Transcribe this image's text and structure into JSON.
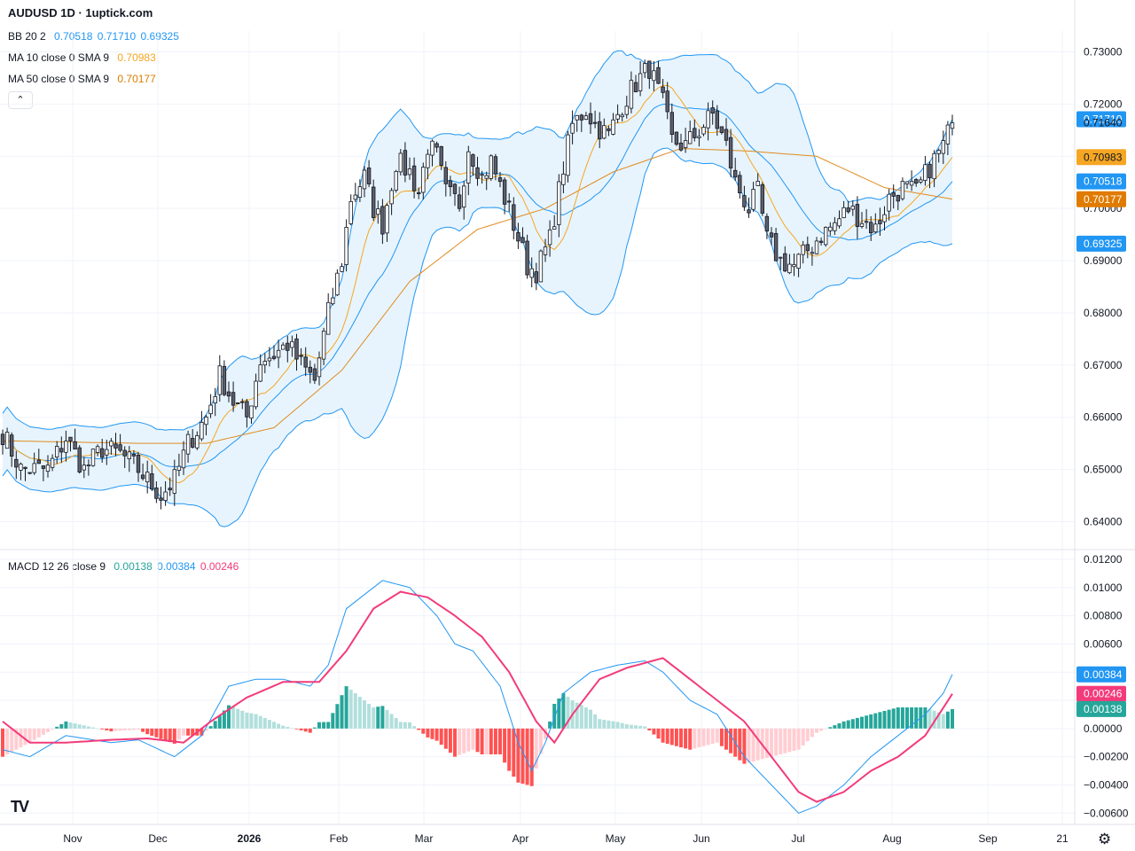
{
  "header": {
    "title": "AUDUSD 1D · 1uptick.com"
  },
  "legend": {
    "bb": {
      "label": "BB 20 2",
      "values": [
        "0.70518",
        "0.71710",
        "0.69325"
      ]
    },
    "ma10": {
      "label": "MA 10 close 0 SMA 9",
      "value": "0.70983"
    },
    "ma50": {
      "label": "MA 50 close 0 SMA 9",
      "value": "0.70177"
    },
    "macd": {
      "label": "MACD 12 26 close 9",
      "values": [
        "0.00138",
        "0.00384",
        "0.00246"
      ]
    }
  },
  "collapse_icon": "chevron-up-icon",
  "colors": {
    "bb": "#2196f3",
    "bb_fill": "#e3f2fd",
    "ma10": "#f5a623",
    "ma50": "#e08a1e",
    "macd_line": "#2196f3",
    "signal_line": "#f23b7a",
    "hist_pos": "#26a69a",
    "hist_pos_light": "#b2dfdb",
    "hist_neg": "#ff5252",
    "hist_neg_light": "#ffcdd2"
  },
  "chart_data": [
    {
      "type": "candlestick",
      "title": "AUDUSD 1D",
      "ylim": [
        0.636,
        0.734
      ],
      "yticks": [
        "0.73000",
        "0.72000",
        "0.71000",
        "0.70000",
        "0.69000",
        "0.68000",
        "0.67000",
        "0.66000",
        "0.65000",
        "0.64000"
      ],
      "xticks": [
        "Nov",
        "Dec",
        "2026",
        "Feb",
        "Mar",
        "Apr",
        "May",
        "Jun",
        "Jul",
        "Aug",
        "Sep",
        "21"
      ],
      "price_labels": [
        {
          "text": "0.71710",
          "value": 0.7171,
          "style": "bb"
        },
        {
          "text": "0.71640",
          "value": 0.7164,
          "style": "plain"
        },
        {
          "text": "0.70983",
          "value": 0.70983,
          "style": "ma10"
        },
        {
          "text": "0.70518",
          "value": 0.70518,
          "style": "bb"
        },
        {
          "text": "0.70177",
          "value": 0.70177,
          "style": "ma50"
        },
        {
          "text": "0.69325",
          "value": 0.69325,
          "style": "bb"
        }
      ],
      "close_keypoints": [
        [
          0,
          0.657
        ],
        [
          4,
          0.65
        ],
        [
          10,
          0.65
        ],
        [
          14,
          0.656
        ],
        [
          18,
          0.65
        ],
        [
          22,
          0.654
        ],
        [
          26,
          0.653
        ],
        [
          30,
          0.65
        ],
        [
          35,
          0.645
        ],
        [
          38,
          0.648
        ],
        [
          41,
          0.655
        ],
        [
          45,
          0.66
        ],
        [
          48,
          0.668
        ],
        [
          51,
          0.663
        ],
        [
          54,
          0.66
        ],
        [
          57,
          0.671
        ],
        [
          60,
          0.672
        ],
        [
          63,
          0.674
        ],
        [
          66,
          0.67
        ],
        [
          69,
          0.667
        ],
        [
          72,
          0.68
        ],
        [
          75,
          0.69
        ],
        [
          77,
          0.702
        ],
        [
          80,
          0.706
        ],
        [
          82,
          0.7
        ],
        [
          84,
          0.697
        ],
        [
          87,
          0.709
        ],
        [
          90,
          0.707
        ],
        [
          92,
          0.703
        ],
        [
          94,
          0.712
        ],
        [
          96,
          0.71
        ],
        [
          98,
          0.703
        ],
        [
          101,
          0.701
        ],
        [
          103,
          0.712
        ],
        [
          106,
          0.706
        ],
        [
          108,
          0.709
        ],
        [
          111,
          0.702
        ],
        [
          113,
          0.697
        ],
        [
          116,
          0.689
        ],
        [
          118,
          0.688
        ],
        [
          121,
          0.694
        ],
        [
          124,
          0.708
        ],
        [
          126,
          0.716
        ],
        [
          129,
          0.719
        ],
        [
          131,
          0.716
        ],
        [
          134,
          0.714
        ],
        [
          137,
          0.72
        ],
        [
          140,
          0.724
        ],
        [
          143,
          0.727
        ],
        [
          146,
          0.72
        ],
        [
          148,
          0.713
        ],
        [
          151,
          0.712
        ],
        [
          154,
          0.715
        ],
        [
          157,
          0.718
        ],
        [
          160,
          0.712
        ],
        [
          162,
          0.705
        ],
        [
          165,
          0.7
        ],
        [
          167,
          0.703
        ],
        [
          169,
          0.694
        ],
        [
          172,
          0.69
        ],
        [
          175,
          0.689
        ],
        [
          178,
          0.692
        ],
        [
          181,
          0.695
        ],
        [
          184,
          0.697
        ],
        [
          187,
          0.7
        ],
        [
          190,
          0.698
        ],
        [
          193,
          0.696
        ],
        [
          196,
          0.702
        ],
        [
          199,
          0.704
        ],
        [
          202,
          0.703
        ],
        [
          205,
          0.708
        ],
        [
          208,
          0.712
        ],
        [
          210,
          0.7164
        ]
      ],
      "ma50_keypoints": [
        [
          0,
          0.6555
        ],
        [
          30,
          0.655
        ],
        [
          45,
          0.655
        ],
        [
          60,
          0.658
        ],
        [
          75,
          0.669
        ],
        [
          90,
          0.686
        ],
        [
          105,
          0.696
        ],
        [
          120,
          0.7
        ],
        [
          135,
          0.707
        ],
        [
          150,
          0.7115
        ],
        [
          165,
          0.711
        ],
        [
          180,
          0.71
        ],
        [
          195,
          0.704
        ],
        [
          210,
          0.7018
        ]
      ],
      "last_values": {
        "ma10": 0.70983,
        "bb_mid": 0.70518,
        "bb_upper": 0.7171,
        "bb_lower": 0.69325
      }
    },
    {
      "type": "macd",
      "ylim": [
        -0.0068,
        0.0125
      ],
      "yticks": [
        "0.01200",
        "0.01000",
        "0.00800",
        "0.00600",
        "0.00400",
        "0.00200",
        "0.00000",
        "−0.00200",
        "−0.00400",
        "−0.00600"
      ],
      "price_labels": [
        {
          "text": "0.00384",
          "value": 0.00384,
          "style": "macd"
        },
        {
          "text": "0.00246",
          "value": 0.00246,
          "style": "signal"
        },
        {
          "text": "0.00138",
          "value": 0.00138,
          "style": "hist"
        }
      ],
      "macd_keypoints": [
        [
          0,
          -0.0015
        ],
        [
          6,
          -0.002
        ],
        [
          14,
          -0.0005
        ],
        [
          24,
          -0.001
        ],
        [
          30,
          -0.0008
        ],
        [
          38,
          -0.002
        ],
        [
          44,
          -0.0005
        ],
        [
          50,
          0.003
        ],
        [
          56,
          0.0035
        ],
        [
          62,
          0.0035
        ],
        [
          68,
          0.003
        ],
        [
          72,
          0.0045
        ],
        [
          76,
          0.0085
        ],
        [
          80,
          0.0095
        ],
        [
          84,
          0.0105
        ],
        [
          90,
          0.01
        ],
        [
          96,
          0.008
        ],
        [
          100,
          0.006
        ],
        [
          104,
          0.0055
        ],
        [
          110,
          0.003
        ],
        [
          114,
          -0.001
        ],
        [
          117,
          -0.003
        ],
        [
          120,
          -0.001
        ],
        [
          124,
          0.0025
        ],
        [
          130,
          0.004
        ],
        [
          136,
          0.0045
        ],
        [
          142,
          0.0048
        ],
        [
          146,
          0.004
        ],
        [
          152,
          0.002
        ],
        [
          158,
          0.001
        ],
        [
          164,
          -0.002
        ],
        [
          170,
          -0.004
        ],
        [
          176,
          -0.006
        ],
        [
          180,
          -0.0055
        ],
        [
          186,
          -0.004
        ],
        [
          192,
          -0.002
        ],
        [
          198,
          -0.0005
        ],
        [
          204,
          0.001
        ],
        [
          208,
          0.0025
        ],
        [
          210,
          0.00384
        ]
      ],
      "signal_keypoints": [
        [
          0,
          0.0005
        ],
        [
          6,
          -0.001
        ],
        [
          14,
          -0.001
        ],
        [
          24,
          -0.0008
        ],
        [
          32,
          -0.0007
        ],
        [
          40,
          -0.001
        ],
        [
          46,
          0.0005
        ],
        [
          54,
          0.0022
        ],
        [
          62,
          0.0033
        ],
        [
          70,
          0.0033
        ],
        [
          76,
          0.0055
        ],
        [
          82,
          0.0085
        ],
        [
          88,
          0.0097
        ],
        [
          94,
          0.0093
        ],
        [
          100,
          0.008
        ],
        [
          106,
          0.0065
        ],
        [
          112,
          0.004
        ],
        [
          118,
          0.0005
        ],
        [
          122,
          -0.001
        ],
        [
          126,
          0.001
        ],
        [
          132,
          0.0035
        ],
        [
          138,
          0.0043
        ],
        [
          146,
          0.005
        ],
        [
          152,
          0.0035
        ],
        [
          158,
          0.002
        ],
        [
          164,
          0.0005
        ],
        [
          170,
          -0.002
        ],
        [
          176,
          -0.0045
        ],
        [
          180,
          -0.0052
        ],
        [
          186,
          -0.0045
        ],
        [
          192,
          -0.003
        ],
        [
          198,
          -0.002
        ],
        [
          204,
          -0.0005
        ],
        [
          210,
          0.00246
        ]
      ],
      "hist_last": 0.00138
    }
  ]
}
